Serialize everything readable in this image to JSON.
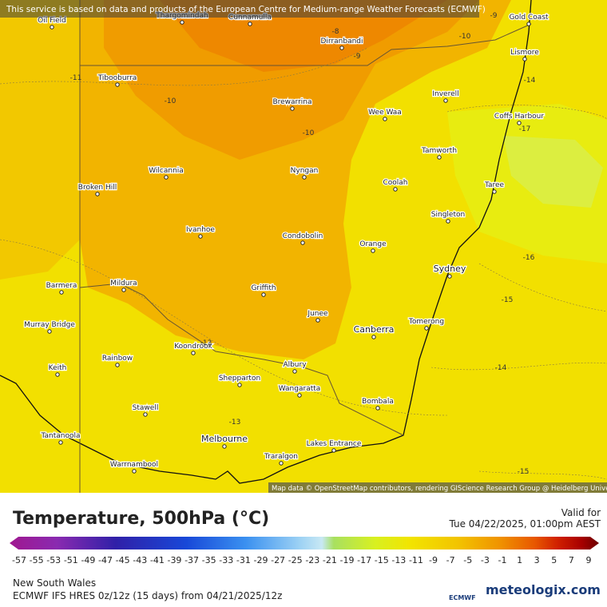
{
  "banner": "This service is based on data and products of the European Centre for Medium-range Weather Forecasts (ECMWF)",
  "cities": [
    "Oil Field",
    "Thargomindah",
    "Cunnamulla",
    "Dirranbandi",
    "Gold Coast",
    "Lismore",
    "Tibooburra",
    "Brewarrina",
    "Inverell",
    "Wee Waa",
    "Coffs Harbour",
    "Tamworth",
    "Wilcannia",
    "Nyngan",
    "Broken Hill",
    "Coolah",
    "Taree",
    "Singleton",
    "Ivanhoe",
    "Condobolin",
    "Orange",
    "Sydney",
    "Barmera",
    "Mildura",
    "Griffith",
    "Murray Bridge",
    "Junee",
    "Canberra",
    "Tomerong",
    "Koondrook",
    "Rainbow",
    "Albury",
    "Keith",
    "Shepparton",
    "Wangaratta",
    "Bombala",
    "Stawell",
    "Tantanoola",
    "Melbourne",
    "Lakes Entrance",
    "Traralgon",
    "Warrnambool"
  ],
  "contour_labels": [
    -9,
    -8,
    -10,
    -9,
    -11,
    -14,
    -10,
    -10,
    -17,
    -16,
    -15,
    -13,
    -14,
    -13,
    -15
  ],
  "attribution": "Map data © OpenStreetMap contributors, rendering GIScience Research Group @ Heidelberg University",
  "title": "Temperature, 500hPa (°C)",
  "valid_label": "Valid for",
  "valid_time": "Tue 04/22/2025, 01:00pm AEST",
  "legend_ticks": [
    -57,
    -55,
    -53,
    -51,
    -49,
    -47,
    -45,
    -43,
    -41,
    -39,
    -37,
    -35,
    -33,
    -31,
    -29,
    -27,
    -25,
    -23,
    -21,
    -19,
    -17,
    -15,
    -13,
    -11,
    -9,
    -7,
    -5,
    -3,
    -1,
    1,
    3,
    5,
    7,
    9
  ],
  "region": "New South Wales",
  "model_run": "ECMWF IFS HRES 0z/12z (15 days) from  04/21/2025/12z",
  "ecmwf_logo": "ECMWF",
  "brand": "meteologix.com"
}
